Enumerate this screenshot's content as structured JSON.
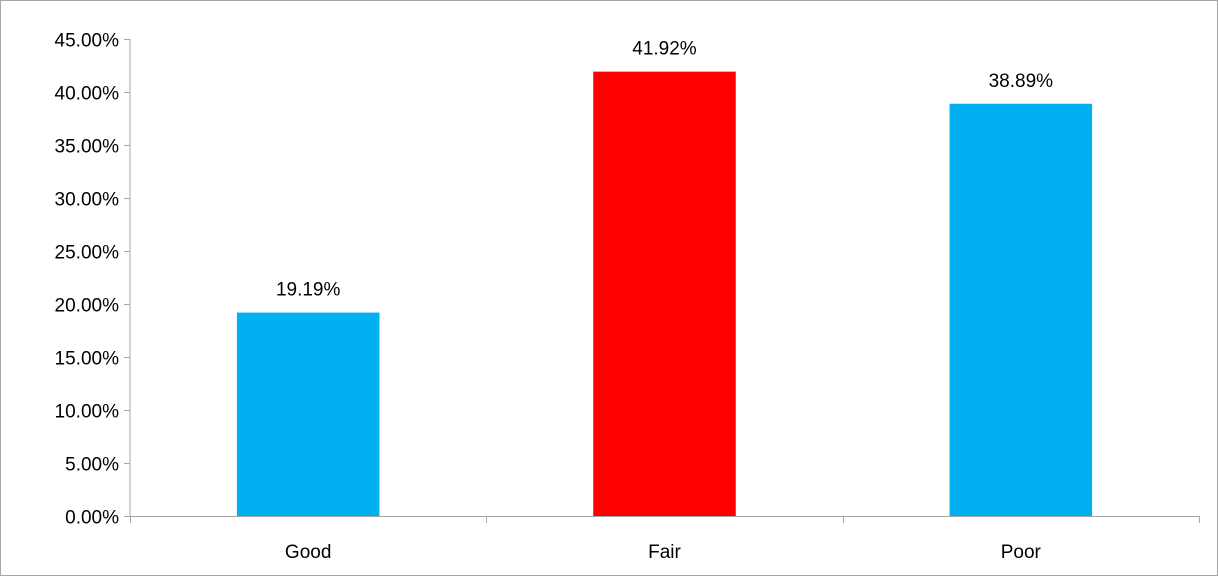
{
  "chart_data": {
    "type": "bar",
    "categories": [
      "Good",
      "Fair",
      "Poor"
    ],
    "values": [
      19.19,
      41.92,
      38.89
    ],
    "data_labels": [
      "19.19%",
      "41.92%",
      "38.89%"
    ],
    "bar_colors": [
      "#00b0f0",
      "#ff0000",
      "#00b0f0"
    ],
    "ylim": [
      0,
      45
    ],
    "y_ticks": [
      0,
      5,
      10,
      15,
      20,
      25,
      30,
      35,
      40,
      45
    ],
    "y_tick_labels": [
      "0.00%",
      "5.00%",
      "10.00%",
      "15.00%",
      "20.00%",
      "25.00%",
      "30.00%",
      "35.00%",
      "40.00%",
      "45.00%"
    ],
    "title": "",
    "xlabel": "",
    "ylabel": "",
    "grid": false,
    "legend": "none"
  }
}
